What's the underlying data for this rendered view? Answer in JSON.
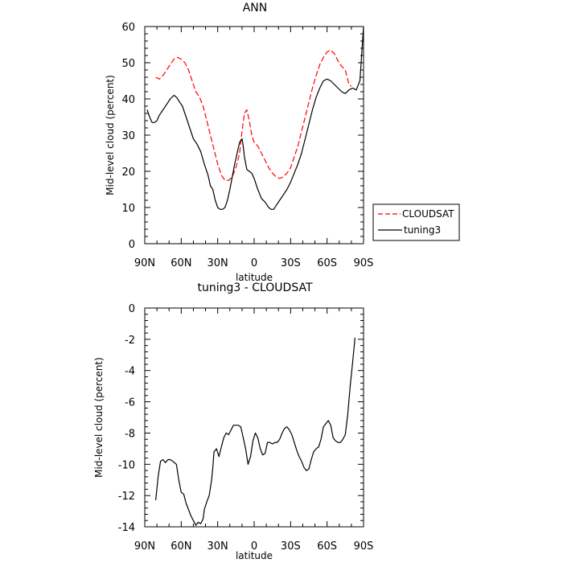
{
  "chart_data": [
    {
      "type": "line",
      "title": "ANN",
      "xlabel": "latitude",
      "ylabel": "Mid-level cloud (percent)",
      "xlim": [
        90,
        -90
      ],
      "ylim": [
        0,
        60
      ],
      "x_ticks": [
        {
          "value": 90,
          "label": "90N"
        },
        {
          "value": 60,
          "label": "60N"
        },
        {
          "value": 30,
          "label": "30N"
        },
        {
          "value": 0,
          "label": "0"
        },
        {
          "value": -30,
          "label": "30S"
        },
        {
          "value": -60,
          "label": "60S"
        },
        {
          "value": -90,
          "label": "90S"
        }
      ],
      "y_ticks": [
        0,
        10,
        20,
        30,
        40,
        50,
        60
      ],
      "legend": "right",
      "series": [
        {
          "name": "CLOUDSAT",
          "color": "#ff0000",
          "style": "dashed",
          "points": [
            [
              81,
              46
            ],
            [
              78,
              45.5
            ],
            [
              75,
              46.5
            ],
            [
              72,
              48
            ],
            [
              69,
              49.5
            ],
            [
              66,
              51
            ],
            [
              63,
              51.5
            ],
            [
              60,
              51
            ],
            [
              57,
              50
            ],
            [
              54,
              48
            ],
            [
              51,
              45
            ],
            [
              48,
              42
            ],
            [
              45,
              40.5
            ],
            [
              42,
              38
            ],
            [
              39,
              34
            ],
            [
              36,
              30
            ],
            [
              33,
              26
            ],
            [
              30,
              22
            ],
            [
              27,
              19
            ],
            [
              24,
              17.5
            ],
            [
              21,
              17.5
            ],
            [
              18,
              18.5
            ],
            [
              15,
              21
            ],
            [
              12,
              25
            ],
            [
              10,
              31
            ],
            [
              8,
              36
            ],
            [
              6,
              37
            ],
            [
              4,
              34
            ],
            [
              2,
              30
            ],
            [
              0,
              28
            ],
            [
              -3,
              27
            ],
            [
              -6,
              25
            ],
            [
              -9,
              23
            ],
            [
              -12,
              21
            ],
            [
              -15,
              19.5
            ],
            [
              -18,
              18.5
            ],
            [
              -21,
              18
            ],
            [
              -24,
              18.5
            ],
            [
              -27,
              19.5
            ],
            [
              -30,
              21
            ],
            [
              -33,
              24
            ],
            [
              -36,
              27
            ],
            [
              -39,
              31
            ],
            [
              -42,
              35
            ],
            [
              -45,
              39
            ],
            [
              -48,
              43
            ],
            [
              -51,
              46.5
            ],
            [
              -54,
              49.5
            ],
            [
              -57,
              51.5
            ],
            [
              -60,
              53
            ],
            [
              -63,
              53.5
            ],
            [
              -66,
              52.5
            ],
            [
              -69,
              50.5
            ],
            [
              -72,
              49
            ],
            [
              -75,
              48
            ],
            [
              -78,
              44
            ],
            [
              -80,
              43.5
            ]
          ]
        },
        {
          "name": "tuning3",
          "color": "#000000",
          "style": "solid",
          "points": [
            [
              88,
              37
            ],
            [
              86,
              35
            ],
            [
              84,
              33.5
            ],
            [
              82,
              33.5
            ],
            [
              80,
              34
            ],
            [
              78,
              35.5
            ],
            [
              75,
              37
            ],
            [
              72,
              38.5
            ],
            [
              69,
              40
            ],
            [
              66,
              41
            ],
            [
              64,
              40.5
            ],
            [
              62,
              39.5
            ],
            [
              59,
              38
            ],
            [
              56,
              35
            ],
            [
              53,
              32
            ],
            [
              50,
              29
            ],
            [
              47,
              27.5
            ],
            [
              44,
              25.5
            ],
            [
              41,
              22
            ],
            [
              38,
              19
            ],
            [
              36,
              16
            ],
            [
              34,
              15
            ],
            [
              32,
              12
            ],
            [
              30,
              10
            ],
            [
              28,
              9.5
            ],
            [
              26,
              9.5
            ],
            [
              24,
              10
            ],
            [
              22,
              12
            ],
            [
              20,
              15
            ],
            [
              18,
              18.5
            ],
            [
              16,
              22
            ],
            [
              14,
              25
            ],
            [
              12,
              28
            ],
            [
              10,
              29
            ],
            [
              9,
              27
            ],
            [
              8,
              24
            ],
            [
              6,
              20.5
            ],
            [
              4,
              20
            ],
            [
              2,
              19.5
            ],
            [
              0,
              18
            ],
            [
              -3,
              15
            ],
            [
              -6,
              12.5
            ],
            [
              -9,
              11.5
            ],
            [
              -12,
              10
            ],
            [
              -14,
              9.5
            ],
            [
              -16,
              9.5
            ],
            [
              -18,
              10.5
            ],
            [
              -21,
              12
            ],
            [
              -24,
              13.5
            ],
            [
              -27,
              15
            ],
            [
              -30,
              17
            ],
            [
              -33,
              19.5
            ],
            [
              -36,
              22
            ],
            [
              -39,
              25
            ],
            [
              -42,
              29
            ],
            [
              -45,
              33
            ],
            [
              -48,
              37
            ],
            [
              -51,
              40.5
            ],
            [
              -54,
              43
            ],
            [
              -57,
              45
            ],
            [
              -60,
              45.5
            ],
            [
              -63,
              45
            ],
            [
              -66,
              44
            ],
            [
              -69,
              43
            ],
            [
              -72,
              42
            ],
            [
              -75,
              41.5
            ],
            [
              -78,
              42.5
            ],
            [
              -81,
              43
            ],
            [
              -84,
              42.5
            ],
            [
              -87,
              45
            ],
            [
              -90,
              60
            ]
          ]
        }
      ]
    },
    {
      "type": "line",
      "title": "tuning3 - CLOUDSAT",
      "xlabel": "latitude",
      "ylabel": "Mid-level cloud (percent)",
      "xlim": [
        90,
        -90
      ],
      "ylim": [
        -14,
        0
      ],
      "x_ticks": [
        {
          "value": 90,
          "label": "90N"
        },
        {
          "value": 60,
          "label": "60N"
        },
        {
          "value": 30,
          "label": "30N"
        },
        {
          "value": 0,
          "label": "0"
        },
        {
          "value": -30,
          "label": "30S"
        },
        {
          "value": -60,
          "label": "60S"
        },
        {
          "value": -90,
          "label": "90S"
        }
      ],
      "y_ticks": [
        -14,
        -12,
        -10,
        -8,
        -6,
        -4,
        -2,
        0
      ],
      "series": [
        {
          "color": "#000000",
          "style": "solid",
          "points": [
            [
              81,
              -12.3
            ],
            [
              79,
              -10.8
            ],
            [
              77,
              -9.8
            ],
            [
              75,
              -9.7
            ],
            [
              73,
              -9.9
            ],
            [
              71,
              -9.7
            ],
            [
              69,
              -9.7
            ],
            [
              67,
              -9.8
            ],
            [
              64,
              -10.0
            ],
            [
              62,
              -11.0
            ],
            [
              60,
              -11.8
            ],
            [
              58,
              -11.9
            ],
            [
              56,
              -12.5
            ],
            [
              54,
              -12.9
            ],
            [
              52,
              -13.3
            ],
            [
              50,
              -13.6
            ],
            [
              48,
              -13.9
            ],
            [
              46,
              -13.7
            ],
            [
              44,
              -13.8
            ],
            [
              42,
              -13.5
            ],
            [
              41,
              -12.9
            ],
            [
              39,
              -12.4
            ],
            [
              37,
              -12.0
            ],
            [
              35,
              -11.0
            ],
            [
              34,
              -10.2
            ],
            [
              33,
              -9.2
            ],
            [
              31,
              -9.0
            ],
            [
              29,
              -9.5
            ],
            [
              27,
              -8.9
            ],
            [
              25,
              -8.3
            ],
            [
              23,
              -8.0
            ],
            [
              21,
              -8.1
            ],
            [
              19,
              -7.8
            ],
            [
              17,
              -7.5
            ],
            [
              15,
              -7.5
            ],
            [
              13,
              -7.5
            ],
            [
              11,
              -7.6
            ],
            [
              9,
              -8.3
            ],
            [
              7,
              -9.0
            ],
            [
              5,
              -10.0
            ],
            [
              3,
              -9.5
            ],
            [
              1,
              -8.5
            ],
            [
              -1,
              -8.0
            ],
            [
              -3,
              -8.3
            ],
            [
              -5,
              -9.0
            ],
            [
              -7,
              -9.4
            ],
            [
              -9,
              -9.3
            ],
            [
              -11,
              -8.6
            ],
            [
              -13,
              -8.6
            ],
            [
              -15,
              -8.7
            ],
            [
              -17,
              -8.6
            ],
            [
              -19,
              -8.6
            ],
            [
              -21,
              -8.4
            ],
            [
              -23,
              -8.0
            ],
            [
              -25,
              -7.7
            ],
            [
              -27,
              -7.6
            ],
            [
              -29,
              -7.8
            ],
            [
              -31,
              -8.1
            ],
            [
              -33,
              -8.6
            ],
            [
              -35,
              -9.1
            ],
            [
              -37,
              -9.5
            ],
            [
              -39,
              -9.8
            ],
            [
              -41,
              -10.2
            ],
            [
              -43,
              -10.4
            ],
            [
              -45,
              -10.3
            ],
            [
              -47,
              -9.7
            ],
            [
              -49,
              -9.2
            ],
            [
              -51,
              -9.0
            ],
            [
              -53,
              -8.9
            ],
            [
              -55,
              -8.4
            ],
            [
              -57,
              -7.6
            ],
            [
              -59,
              -7.4
            ],
            [
              -61,
              -7.2
            ],
            [
              -63,
              -7.5
            ],
            [
              -65,
              -8.3
            ],
            [
              -67,
              -8.5
            ],
            [
              -69,
              -8.6
            ],
            [
              -71,
              -8.6
            ],
            [
              -73,
              -8.4
            ],
            [
              -75,
              -8.1
            ],
            [
              -77,
              -6.8
            ],
            [
              -79,
              -5.0
            ],
            [
              -81,
              -3.5
            ],
            [
              -83,
              -1.9
            ]
          ]
        }
      ]
    }
  ]
}
